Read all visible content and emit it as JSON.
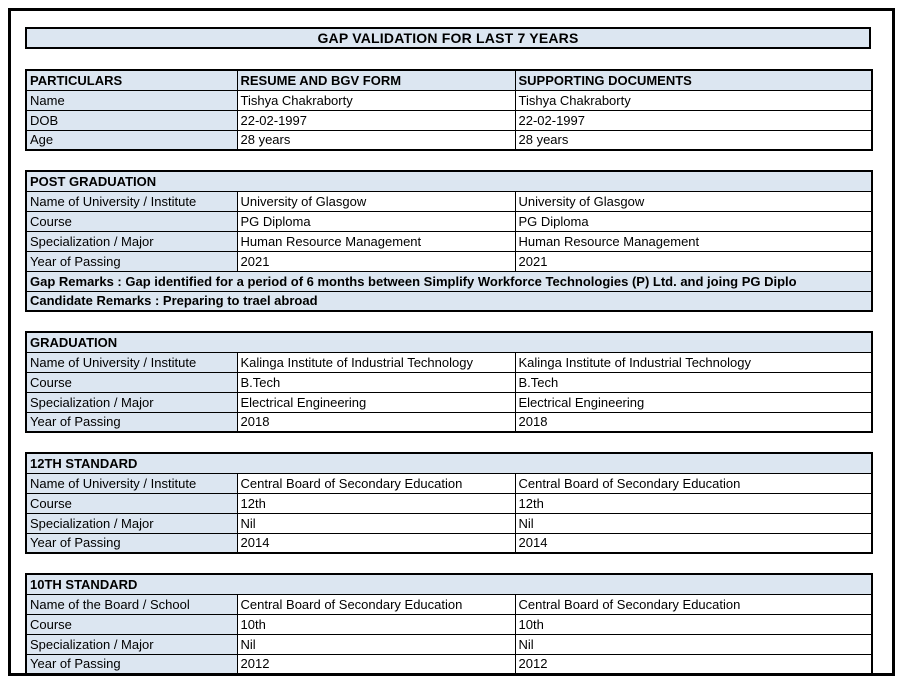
{
  "title": "GAP VALIDATION FOR LAST 7 YEARS",
  "colors": {
    "header_fill": "#dce6f1",
    "border": "#000000",
    "page_background": "#ffffff",
    "text": "#000000"
  },
  "particulars_table": {
    "headers": [
      "PARTICULARS",
      "RESUME AND BGV FORM",
      "SUPPORTING DOCUMENTS"
    ],
    "rows": [
      {
        "label": "Name",
        "resume": "Tishya Chakraborty",
        "supporting": "Tishya Chakraborty"
      },
      {
        "label": "DOB",
        "resume": "22-02-1997",
        "supporting": "22-02-1997"
      },
      {
        "label": "Age",
        "resume": "28 years",
        "supporting": "28 years"
      }
    ]
  },
  "sections": [
    {
      "title": "POST GRADUATION",
      "rows": [
        {
          "label": "Name of University / Institute",
          "resume": "University of Glasgow",
          "supporting": "University of Glasgow"
        },
        {
          "label": "Course",
          "resume": "PG Diploma",
          "supporting": "PG Diploma"
        },
        {
          "label": "Specialization / Major",
          "resume": "Human Resource Management",
          "supporting": "Human Resource Management"
        },
        {
          "label": "Year of Passing",
          "resume": "2021",
          "supporting": "2021"
        }
      ],
      "remarks": [
        "Gap Remarks : Gap identified for a period of 6 months between Simplify Workforce Technologies (P) Ltd. and joing PG Diplo",
        "Candidate Remarks : Preparing to trael abroad"
      ]
    },
    {
      "title": "GRADUATION",
      "rows": [
        {
          "label": "Name of University / Institute",
          "resume": "Kalinga Institute of Industrial Technology",
          "supporting": "Kalinga Institute of Industrial Technology"
        },
        {
          "label": "Course",
          "resume": "B.Tech",
          "supporting": "B.Tech"
        },
        {
          "label": "Specialization / Major",
          "resume": "Electrical Engineering",
          "supporting": "Electrical Engineering"
        },
        {
          "label": "Year of Passing",
          "resume": "2018",
          "supporting": "2018"
        }
      ],
      "remarks": []
    },
    {
      "title": "12TH STANDARD",
      "rows": [
        {
          "label": "Name of University / Institute",
          "resume": "Central Board of Secondary Education",
          "supporting": "Central Board of Secondary Education"
        },
        {
          "label": "Course",
          "resume": "12th",
          "supporting": "12th"
        },
        {
          "label": "Specialization / Major",
          "resume": "Nil",
          "supporting": "Nil"
        },
        {
          "label": "Year of Passing",
          "resume": "2014",
          "supporting": "2014"
        }
      ],
      "remarks": []
    },
    {
      "title": "10TH STANDARD",
      "rows": [
        {
          "label": "Name of the Board / School",
          "resume": "Central Board of Secondary Education",
          "supporting": "Central Board of Secondary Education"
        },
        {
          "label": "Course",
          "resume": "10th",
          "supporting": "10th"
        },
        {
          "label": "Specialization / Major",
          "resume": "Nil",
          "supporting": "Nil"
        },
        {
          "label": "Year of Passing",
          "resume": "2012",
          "supporting": "2012"
        }
      ],
      "remarks": []
    }
  ]
}
